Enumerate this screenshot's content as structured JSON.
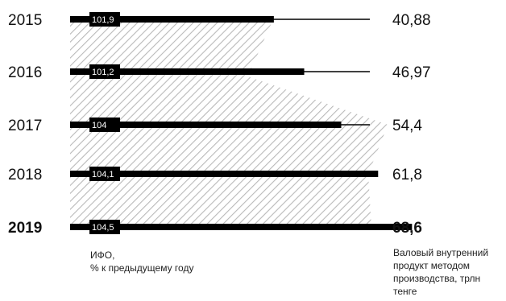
{
  "colors": {
    "bar": "#000000",
    "hatch": "#b9b9b9",
    "axis": "#000000",
    "text": "#111111"
  },
  "chart_data": {
    "type": "bar",
    "categories": [
      "2015",
      "2016",
      "2017",
      "2018",
      "2019"
    ],
    "highlight_category": "2019",
    "series": [
      {
        "name": "Валовый внутренний продукт методом производства, трлн тенге",
        "values": [
          40.88,
          46.97,
          54.4,
          61.8,
          68.6
        ],
        "value_labels": [
          "40,88",
          "46,97",
          "54,4",
          "61,8",
          "68,6"
        ]
      },
      {
        "name": "ИФО, % к предыдущему году",
        "values": [
          101.9,
          101.2,
          104,
          104.1,
          104.5
        ],
        "value_labels": [
          "101,9",
          "101,2",
          "104",
          "104,1",
          "104,5"
        ]
      }
    ],
    "xlim": [
      0,
      70
    ]
  },
  "legend": {
    "ifo": [
      "ИФО,",
      "% к предыдущему году"
    ],
    "gdp": [
      "Валовый внутренний",
      "продукт методом",
      "производства, трлн",
      "тенге"
    ]
  }
}
